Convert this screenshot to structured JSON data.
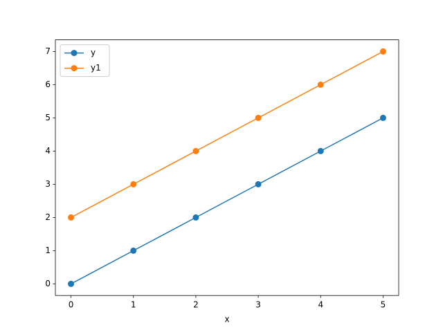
{
  "chart_data": {
    "type": "line",
    "xlabel": "x",
    "x": [
      0,
      1,
      2,
      3,
      4,
      5
    ],
    "series": [
      {
        "name": "y",
        "color": "#1f77b4",
        "values": [
          0,
          1,
          2,
          3,
          4,
          5
        ]
      },
      {
        "name": "y1",
        "color": "#ff7f0e",
        "values": [
          2,
          3,
          4,
          5,
          6,
          7
        ]
      }
    ],
    "xlim": [
      -0.25,
      5.25
    ],
    "xticks": [
      0,
      1,
      2,
      3,
      4,
      5
    ],
    "ylim": [
      -0.35,
      7.35
    ],
    "yticks": [
      0,
      1,
      2,
      3,
      4,
      5,
      6,
      7
    ],
    "legend": "upper left",
    "grid": false
  }
}
